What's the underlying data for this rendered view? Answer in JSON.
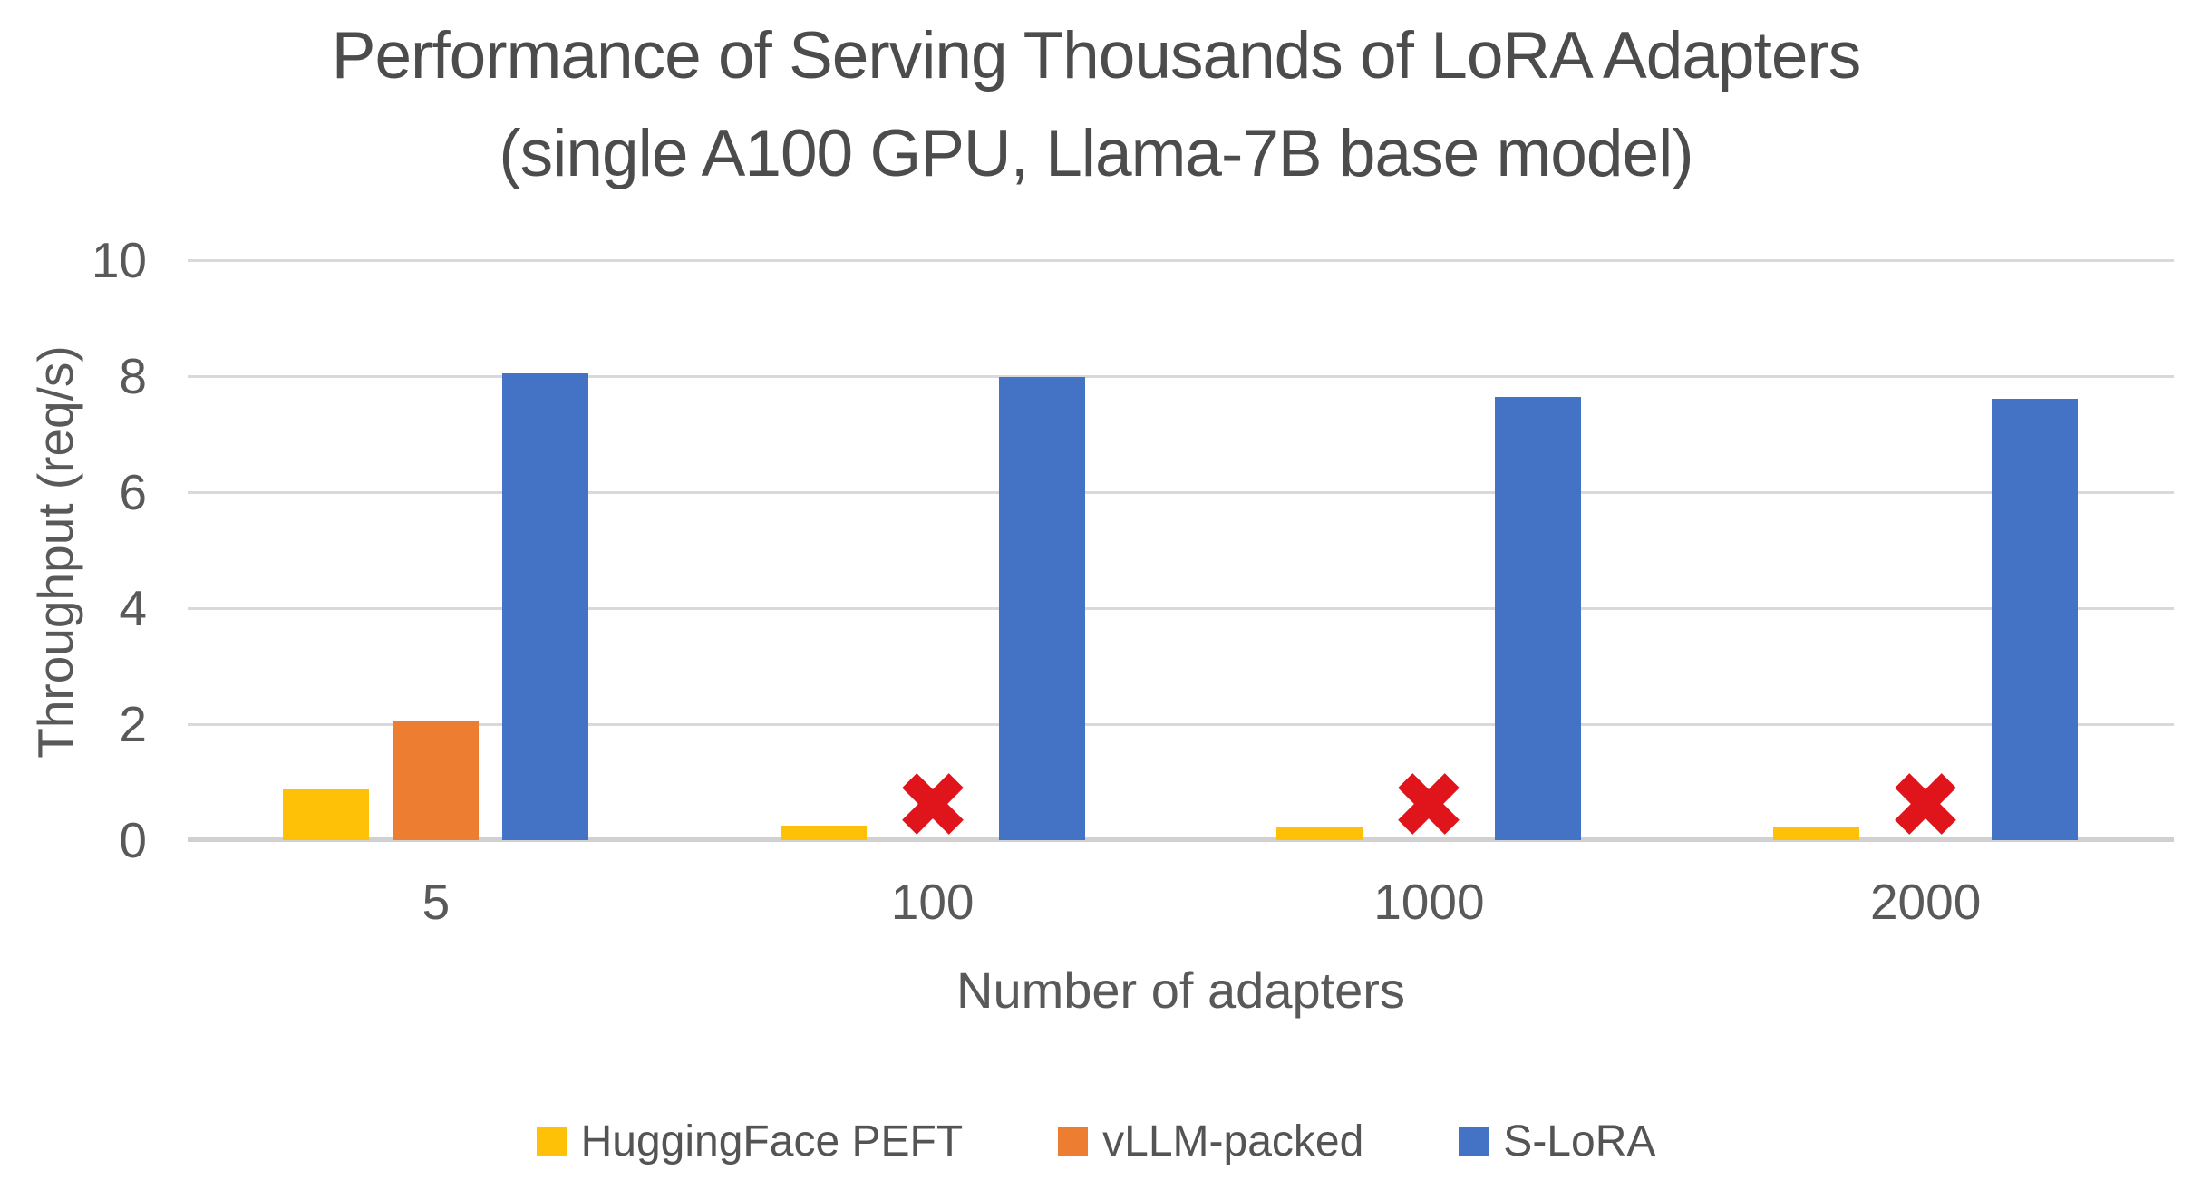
{
  "title": {
    "line1": "Performance of Serving Thousands of LoRA Adapters",
    "line2": "(single A100 GPU, Llama-7B base model)"
  },
  "chart_data": {
    "type": "bar",
    "title": "Performance of Serving Thousands of LoRA Adapters (single A100 GPU, Llama-7B base model)",
    "categories": [
      "5",
      "100",
      "1000",
      "2000"
    ],
    "series": [
      {
        "name": "HuggingFace PEFT",
        "color": "#FFC107",
        "values": [
          0.88,
          0.25,
          0.23,
          0.22
        ]
      },
      {
        "name": "vLLM-packed",
        "color": "#ED7D31",
        "values": [
          2.04,
          null,
          null,
          null
        ]
      },
      {
        "name": "S-LoRA",
        "color": "#4472C4",
        "values": [
          8.05,
          7.99,
          7.64,
          7.61
        ]
      }
    ],
    "xlabel": "Number of adapters",
    "ylabel": "Throughput (req/s)",
    "ylim": [
      0,
      10
    ],
    "yticks": [
      0,
      2,
      4,
      6,
      8,
      10
    ],
    "grid": true,
    "legend_position": "bottom",
    "failure_marker": {
      "symbol": "x",
      "color": "#E0151C"
    }
  },
  "colors": {
    "background": "#FFFFFF",
    "title_text": "#4C4C4C",
    "axis_text": "#595959",
    "gridline": "#D9D9D9"
  }
}
